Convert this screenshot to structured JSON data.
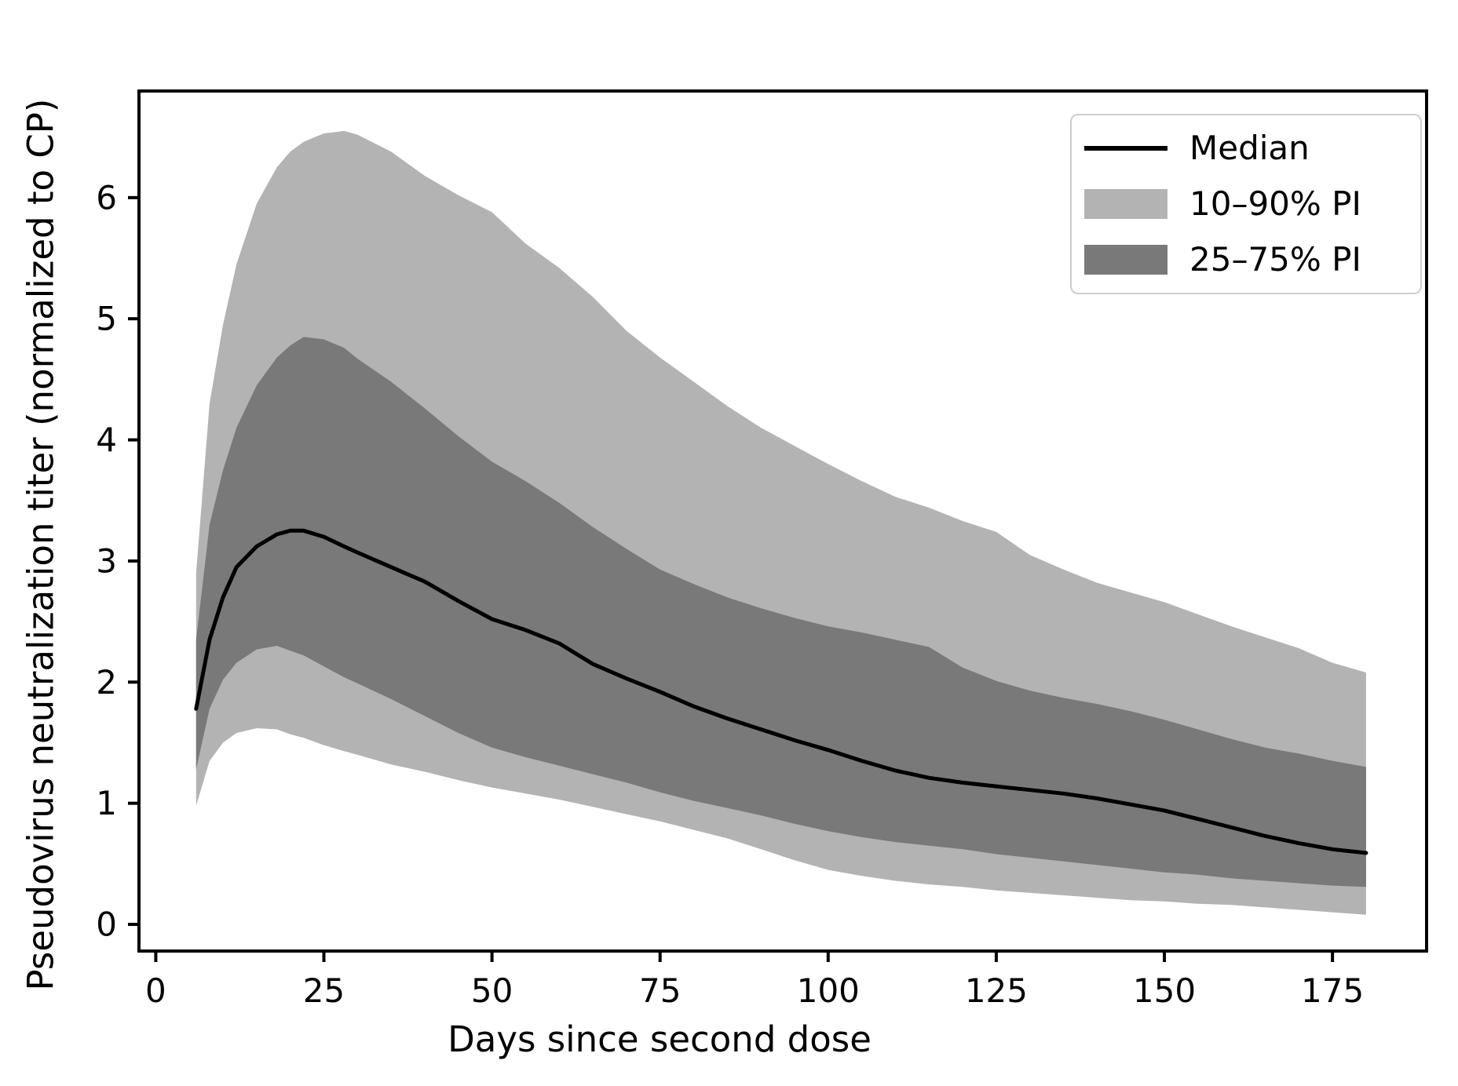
{
  "figure": {
    "xlabel": "Days since second dose",
    "ylabel": "Pseudovirus neutralization titer (normalized to CP)"
  },
  "legend": {
    "items": [
      {
        "label": "Median",
        "sample": "line",
        "color": "#000000"
      },
      {
        "label": "10–90% PI",
        "sample": "patch",
        "color": "#b3b3b3"
      },
      {
        "label": "25–75% PI",
        "sample": "patch",
        "color": "#797979"
      }
    ]
  },
  "chart_data": {
    "type": "area",
    "title": "",
    "xlabel": "Days since second dose",
    "ylabel": "Pseudovirus neutralization titer (normalized to CP)",
    "xlim": [
      -2.5,
      189
    ],
    "ylim": [
      -0.22,
      6.88
    ],
    "xticks": [
      0,
      25,
      50,
      75,
      100,
      125,
      150,
      175
    ],
    "yticks": [
      0,
      1,
      2,
      3,
      4,
      5,
      6
    ],
    "grid": false,
    "legend_position": "upper right",
    "colors": {
      "median": "#000000",
      "band_outer": "#b3b3b3",
      "band_inner": "#797979",
      "spine": "#000000"
    },
    "x": [
      6,
      8,
      10,
      12,
      15,
      18,
      20,
      22,
      25,
      28,
      30,
      35,
      40,
      45,
      50,
      55,
      60,
      65,
      70,
      75,
      80,
      85,
      90,
      95,
      100,
      105,
      110,
      115,
      120,
      125,
      130,
      135,
      140,
      145,
      150,
      155,
      160,
      165,
      170,
      175,
      180
    ],
    "series": [
      {
        "name": "Median",
        "type": "line",
        "color": "#000000",
        "values": [
          1.78,
          2.35,
          2.7,
          2.95,
          3.12,
          3.22,
          3.25,
          3.25,
          3.2,
          3.12,
          3.07,
          2.95,
          2.83,
          2.67,
          2.52,
          2.43,
          2.32,
          2.15,
          2.03,
          1.92,
          1.8,
          1.7,
          1.61,
          1.52,
          1.44,
          1.35,
          1.27,
          1.21,
          1.17,
          1.14,
          1.11,
          1.08,
          1.04,
          0.99,
          0.94,
          0.87,
          0.8,
          0.73,
          0.67,
          0.62,
          0.59
        ]
      },
      {
        "name": "10–90% PI",
        "type": "band",
        "color": "#b3b3b3",
        "lower": [
          0.98,
          1.35,
          1.5,
          1.58,
          1.62,
          1.61,
          1.57,
          1.54,
          1.48,
          1.43,
          1.4,
          1.32,
          1.26,
          1.19,
          1.13,
          1.08,
          1.03,
          0.97,
          0.91,
          0.85,
          0.78,
          0.71,
          0.62,
          0.53,
          0.45,
          0.4,
          0.36,
          0.33,
          0.31,
          0.28,
          0.26,
          0.24,
          0.22,
          0.2,
          0.19,
          0.17,
          0.16,
          0.14,
          0.12,
          0.1,
          0.08
        ],
        "upper": [
          2.9,
          4.3,
          4.95,
          5.45,
          5.95,
          6.25,
          6.38,
          6.46,
          6.53,
          6.55,
          6.52,
          6.38,
          6.18,
          6.02,
          5.88,
          5.62,
          5.42,
          5.18,
          4.9,
          4.68,
          4.48,
          4.28,
          4.1,
          3.95,
          3.8,
          3.66,
          3.53,
          3.44,
          3.33,
          3.24,
          3.05,
          2.93,
          2.82,
          2.74,
          2.66,
          2.56,
          2.46,
          2.37,
          2.28,
          2.16,
          2.08
        ]
      },
      {
        "name": "25–75% PI",
        "type": "band",
        "color": "#797979",
        "lower": [
          1.28,
          1.78,
          2.02,
          2.16,
          2.27,
          2.3,
          2.26,
          2.22,
          2.13,
          2.04,
          1.99,
          1.86,
          1.72,
          1.58,
          1.46,
          1.38,
          1.31,
          1.24,
          1.17,
          1.09,
          1.02,
          0.96,
          0.9,
          0.83,
          0.77,
          0.72,
          0.68,
          0.65,
          0.62,
          0.58,
          0.55,
          0.52,
          0.49,
          0.46,
          0.43,
          0.41,
          0.38,
          0.36,
          0.34,
          0.32,
          0.31
        ],
        "upper": [
          2.35,
          3.3,
          3.75,
          4.1,
          4.45,
          4.68,
          4.78,
          4.85,
          4.83,
          4.76,
          4.67,
          4.48,
          4.26,
          4.03,
          3.82,
          3.66,
          3.48,
          3.28,
          3.1,
          2.93,
          2.81,
          2.7,
          2.61,
          2.53,
          2.46,
          2.41,
          2.35,
          2.29,
          2.12,
          2.01,
          1.93,
          1.87,
          1.82,
          1.76,
          1.69,
          1.61,
          1.53,
          1.46,
          1.41,
          1.35,
          1.3
        ]
      }
    ]
  }
}
